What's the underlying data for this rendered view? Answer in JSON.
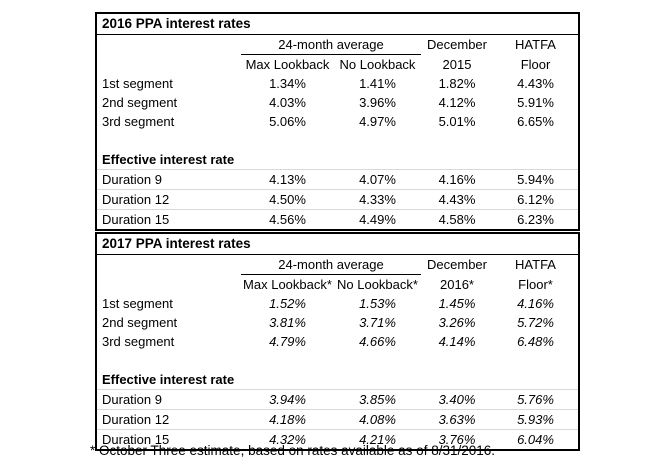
{
  "page": {
    "background": "#ffffff",
    "text_color": "#000000",
    "border_color": "#000000",
    "gridline_color": "#d9d9d9"
  },
  "footnote": "* October Three estimate, based on rates available as of 8/31/2016.",
  "tables": [
    {
      "title": "2016 PPA interest rates",
      "header": {
        "group": "24-month average",
        "dec_line1": "December",
        "dec_line2": "2015",
        "hatfa_line1": "HATFA",
        "hatfa_line2": "Floor",
        "sub_max": "Max Lookback",
        "sub_no": "No Lookback"
      },
      "section_label": "Effective interest rate",
      "segments": [
        {
          "label": "1st segment",
          "max": "1.34%",
          "no": "1.41%",
          "dec": "1.82%",
          "hatfa": "4.43%"
        },
        {
          "label": "2nd segment",
          "max": "4.03%",
          "no": "3.96%",
          "dec": "4.12%",
          "hatfa": "5.91%"
        },
        {
          "label": "3rd segment",
          "max": "5.06%",
          "no": "4.97%",
          "dec": "5.01%",
          "hatfa": "6.65%"
        }
      ],
      "durations": [
        {
          "label": "Duration 9",
          "max": "4.13%",
          "no": "4.07%",
          "dec": "4.16%",
          "hatfa": "5.94%"
        },
        {
          "label": "Duration 12",
          "max": "4.50%",
          "no": "4.33%",
          "dec": "4.43%",
          "hatfa": "6.12%"
        },
        {
          "label": "Duration 15",
          "max": "4.56%",
          "no": "4.49%",
          "dec": "4.58%",
          "hatfa": "6.23%"
        }
      ]
    },
    {
      "title": "2017 PPA interest rates",
      "header": {
        "group": "24-month average",
        "dec_line1": "December",
        "dec_line2": "2016*",
        "hatfa_line1": "HATFA",
        "hatfa_line2": "Floor*",
        "sub_max": "Max Lookback*",
        "sub_no": "No Lookback*"
      },
      "section_label": "Effective interest rate",
      "segments": [
        {
          "label": "1st segment",
          "max": "1.52%",
          "no": "1.53%",
          "dec": "1.45%",
          "hatfa": "4.16%"
        },
        {
          "label": "2nd segment",
          "max": "3.81%",
          "no": "3.71%",
          "dec": "3.26%",
          "hatfa": "5.72%"
        },
        {
          "label": "3rd segment",
          "max": "4.79%",
          "no": "4.66%",
          "dec": "4.14%",
          "hatfa": "6.48%"
        }
      ],
      "durations": [
        {
          "label": "Duration 9",
          "max": "3.94%",
          "no": "3.85%",
          "dec": "3.40%",
          "hatfa": "5.76%"
        },
        {
          "label": "Duration 12",
          "max": "4.18%",
          "no": "4.08%",
          "dec": "3.63%",
          "hatfa": "5.93%"
        },
        {
          "label": "Duration 15",
          "max": "4.32%",
          "no": "4.21%",
          "dec": "3.76%",
          "hatfa": "6.04%"
        }
      ]
    }
  ]
}
